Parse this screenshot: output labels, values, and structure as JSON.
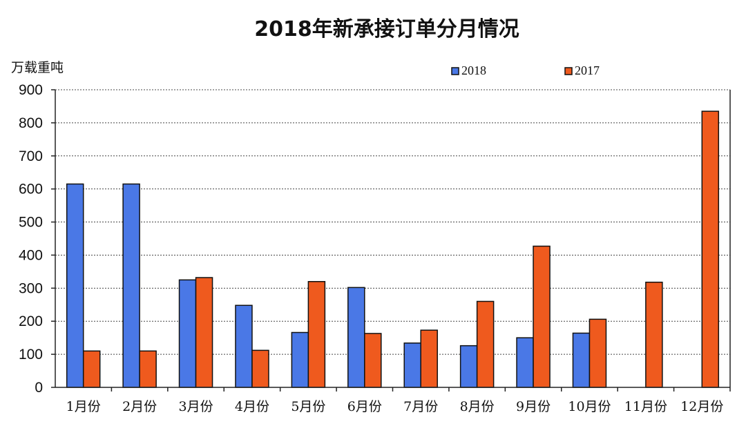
{
  "chart_data": {
    "type": "bar",
    "title": "2018年新承接订单分月情况",
    "ylabel": "万载重吨",
    "xlabel": "",
    "ylim": [
      0,
      900
    ],
    "yticks": [
      0,
      100,
      200,
      300,
      400,
      500,
      600,
      700,
      800,
      900
    ],
    "categories": [
      "1月份",
      "2月份",
      "3月份",
      "4月份",
      "5月份",
      "6月份",
      "7月份",
      "8月份",
      "9月份",
      "10月份",
      "11月份",
      "12月份"
    ],
    "series": [
      {
        "name": "2018",
        "color": "#4a78e6",
        "values": [
          615,
          615,
          325,
          248,
          166,
          302,
          134,
          126,
          150,
          164,
          null,
          null
        ]
      },
      {
        "name": "2017",
        "color": "#ef5a1e",
        "values": [
          110,
          110,
          332,
          112,
          320,
          163,
          173,
          260,
          427,
          206,
          318,
          835
        ]
      }
    ],
    "grid": true,
    "legend_position": "top-right"
  }
}
